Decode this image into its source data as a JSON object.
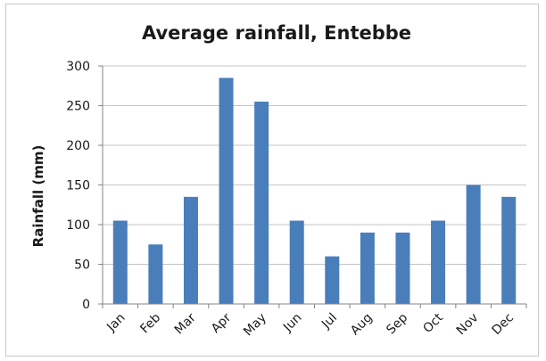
{
  "chart_data": {
    "type": "bar",
    "title": "Average rainfall, Entebbe",
    "xlabel": "",
    "ylabel": "Rainfall (mm)",
    "categories": [
      "Jan",
      "Feb",
      "Mar",
      "Apr",
      "May",
      "Jun",
      "Jul",
      "Aug",
      "Sep",
      "Oct",
      "Nov",
      "Dec"
    ],
    "values": [
      105,
      75,
      135,
      285,
      255,
      105,
      60,
      90,
      90,
      105,
      150,
      135
    ],
    "ylim": [
      0,
      300
    ],
    "yticks": [
      "0",
      "50",
      "100",
      "150",
      "200",
      "250",
      "300"
    ],
    "grid": true,
    "legend": "none",
    "bar_color": "#4a7ebb"
  }
}
